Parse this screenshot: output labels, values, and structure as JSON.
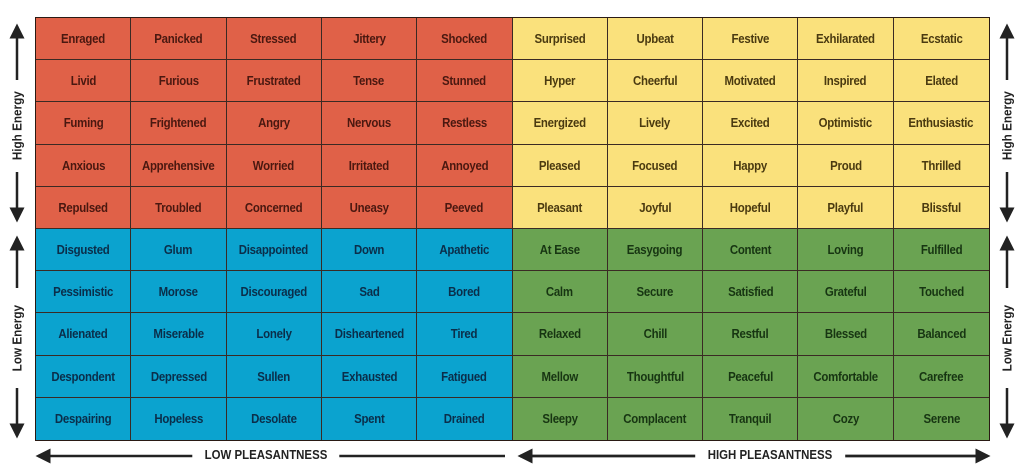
{
  "quadrant_colors": {
    "red": "#e06148",
    "yellow": "#fae17c",
    "blue": "#0ba3cf",
    "green": "#6aa352"
  },
  "rows": [
    [
      "Enraged",
      "Panicked",
      "Stressed",
      "Jittery",
      "Shocked",
      "Surprised",
      "Upbeat",
      "Festive",
      "Exhilarated",
      "Ecstatic"
    ],
    [
      "Livid",
      "Furious",
      "Frustrated",
      "Tense",
      "Stunned",
      "Hyper",
      "Cheerful",
      "Motivated",
      "Inspired",
      "Elated"
    ],
    [
      "Fuming",
      "Frightened",
      "Angry",
      "Nervous",
      "Restless",
      "Energized",
      "Lively",
      "Excited",
      "Optimistic",
      "Enthusiastic"
    ],
    [
      "Anxious",
      "Apprehensive",
      "Worried",
      "Irritated",
      "Annoyed",
      "Pleased",
      "Focused",
      "Happy",
      "Proud",
      "Thrilled"
    ],
    [
      "Repulsed",
      "Troubled",
      "Concerned",
      "Uneasy",
      "Peeved",
      "Pleasant",
      "Joyful",
      "Hopeful",
      "Playful",
      "Blissful"
    ],
    [
      "Disgusted",
      "Glum",
      "Disappointed",
      "Down",
      "Apathetic",
      "At Ease",
      "Easygoing",
      "Content",
      "Loving",
      "Fulfilled"
    ],
    [
      "Pessimistic",
      "Morose",
      "Discouraged",
      "Sad",
      "Bored",
      "Calm",
      "Secure",
      "Satisfied",
      "Grateful",
      "Touched"
    ],
    [
      "Alienated",
      "Miserable",
      "Lonely",
      "Disheartened",
      "Tired",
      "Relaxed",
      "Chill",
      "Restful",
      "Blessed",
      "Balanced"
    ],
    [
      "Despondent",
      "Depressed",
      "Sullen",
      "Exhausted",
      "Fatigued",
      "Mellow",
      "Thoughtful",
      "Peaceful",
      "Comfortable",
      "Carefree"
    ],
    [
      "Despairing",
      "Hopeless",
      "Desolate",
      "Spent",
      "Drained",
      "Sleepy",
      "Complacent",
      "Tranquil",
      "Cozy",
      "Serene"
    ]
  ],
  "axes": {
    "high_energy": "High Energy",
    "low_energy": "Low Energy",
    "low_pleasantness": "LOW PLEASANTNESS",
    "high_pleasantness": "HIGH PLEASANTNESS"
  }
}
